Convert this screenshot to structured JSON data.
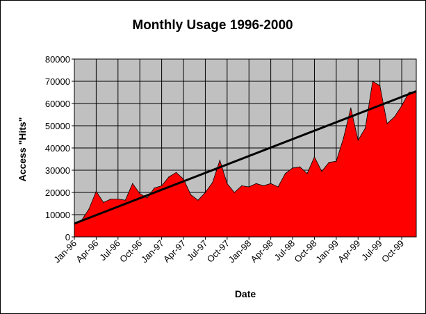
{
  "chart_data": {
    "type": "area",
    "title": "Monthly Usage 1996-2000",
    "xlabel": "Date",
    "ylabel": "Access \"Hits\"",
    "ylim": [
      0,
      80000
    ],
    "yticks": [
      0,
      10000,
      20000,
      30000,
      40000,
      50000,
      60000,
      70000,
      80000
    ],
    "x": [
      "Jan-96",
      "Feb-96",
      "Mar-96",
      "Apr-96",
      "May-96",
      "Jun-96",
      "Jul-96",
      "Aug-96",
      "Sep-96",
      "Oct-96",
      "Nov-96",
      "Dec-96",
      "Jan-97",
      "Feb-97",
      "Mar-97",
      "Apr-97",
      "May-97",
      "Jun-97",
      "Jul-97",
      "Aug-97",
      "Sep-97",
      "Oct-97",
      "Nov-97",
      "Dec-97",
      "Jan-98",
      "Feb-98",
      "Mar-98",
      "Apr-98",
      "May-98",
      "Jun-98",
      "Jul-98",
      "Aug-98",
      "Sep-98",
      "Oct-98",
      "Nov-98",
      "Dec-98",
      "Jan-99",
      "Feb-99",
      "Mar-99",
      "Apr-99",
      "May-99",
      "Jun-99",
      "Jul-99",
      "Aug-99",
      "Sep-99",
      "Oct-99",
      "Nov-99",
      "Dec-99"
    ],
    "xtick_labels": [
      "Jan-96",
      "Apr-96",
      "Jul-96",
      "Oct-96",
      "Jan-97",
      "Apr-97",
      "Jul-97",
      "Oct-97",
      "Jan-98",
      "Apr-98",
      "Jul-98",
      "Oct-98",
      "Jan-99",
      "Apr-99",
      "Jul-99",
      "Oct-99"
    ],
    "series": [
      {
        "type": "area",
        "color": "#ff0000",
        "values": [
          6000,
          7500,
          12500,
          20500,
          15500,
          17000,
          17000,
          16500,
          24000,
          19500,
          17500,
          22000,
          23000,
          27000,
          29000,
          26000,
          19000,
          16500,
          20000,
          24500,
          34500,
          24000,
          20000,
          23000,
          22500,
          24000,
          23000,
          24000,
          22500,
          28500,
          31000,
          31500,
          28500,
          36000,
          29500,
          33500,
          34000,
          44500,
          58000,
          43500,
          49000,
          70000,
          68000,
          51000,
          54000,
          59000,
          65000,
          65500
        ]
      },
      {
        "type": "trendline",
        "color": "#000000",
        "start": 6000,
        "end": 65500
      }
    ],
    "plot_background": "#c0c0c0",
    "grid": "vertical gridlines at ticks, horizontal gridlines at y ticks",
    "legend": "none"
  }
}
